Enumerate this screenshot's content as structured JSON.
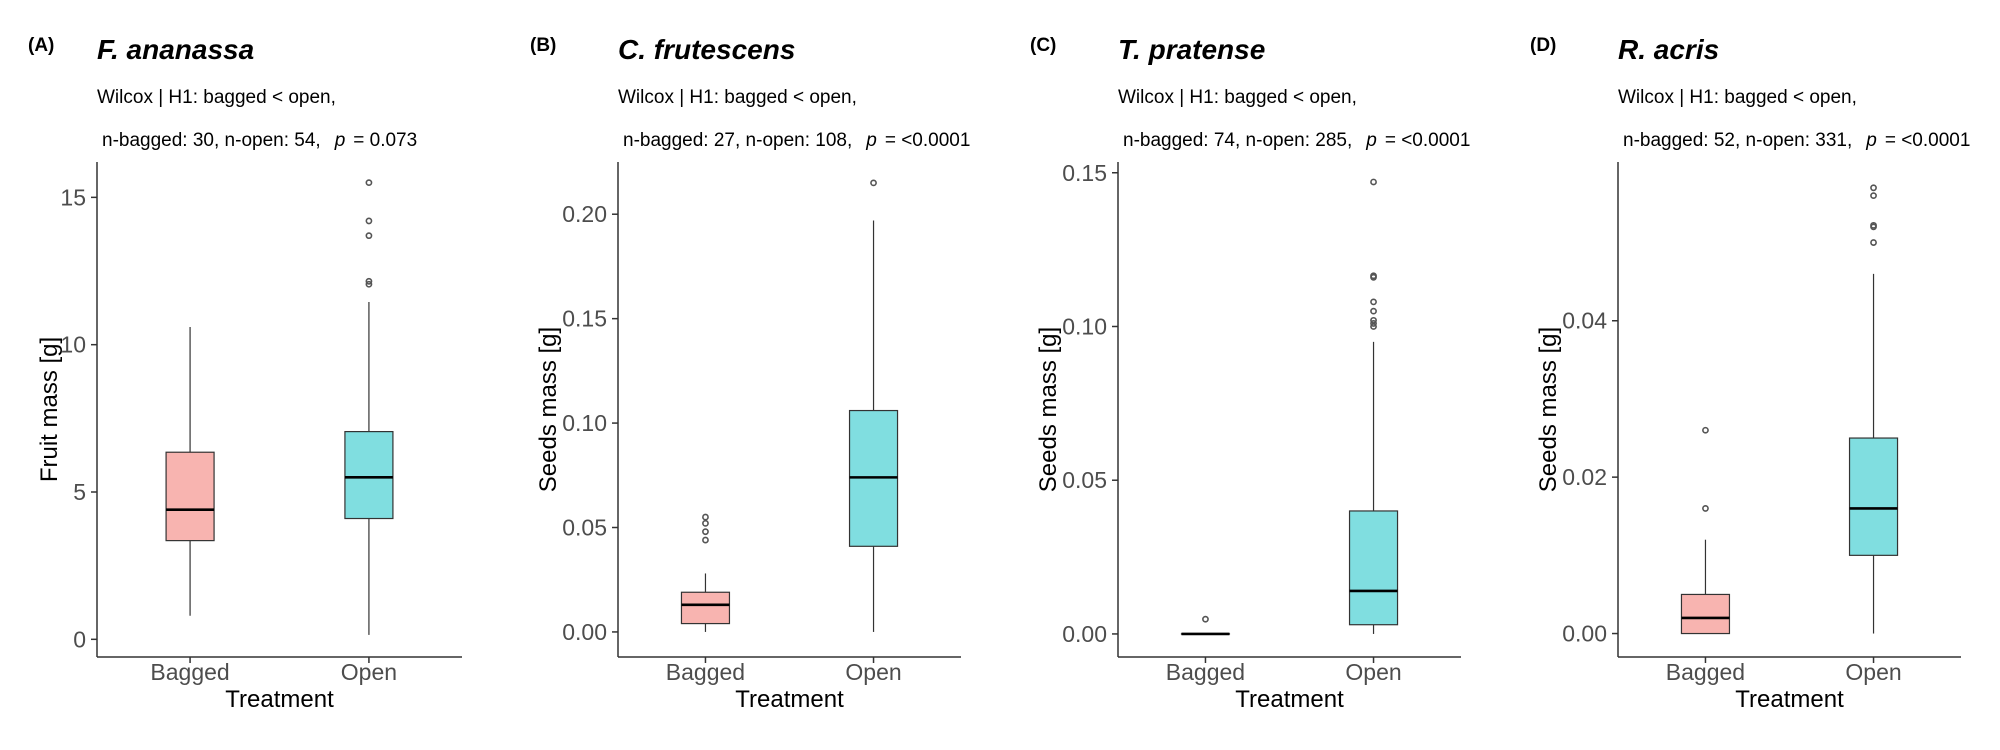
{
  "colors": {
    "bagged": "#F8B4B0",
    "open": "#80DEE0",
    "outline": "#333333",
    "outlier": "#555555"
  },
  "chart_data": [
    {
      "type": "box",
      "panel_label": "(A)",
      "title": "F. ananassa",
      "subtitle_line1": "Wilcox | H1: bagged < open,",
      "subtitle_line2_prefix": "n-bagged: 30, n-open: 54,",
      "p_label": "p",
      "p_value_text": "= 0.073",
      "xlabel": "Treatment",
      "ylabel": "Fruit mass [g]",
      "ylim": [
        -0.6,
        16.2
      ],
      "yticks": [
        0,
        5,
        10,
        15
      ],
      "ytick_labels": [
        "0",
        "5",
        "10",
        "15"
      ],
      "categories": [
        "Bagged",
        "Open"
      ],
      "boxes": [
        {
          "name": "Bagged",
          "min": 0.8,
          "q1": 3.35,
          "median": 4.4,
          "q3": 6.35,
          "max": 10.6,
          "outliers": []
        },
        {
          "name": "Open",
          "min": 0.15,
          "q1": 4.1,
          "median": 5.5,
          "q3": 7.05,
          "max": 11.45,
          "outliers": [
            12.05,
            12.15,
            13.7,
            14.2,
            15.5
          ]
        }
      ]
    },
    {
      "type": "box",
      "panel_label": "(B)",
      "title": "C. frutescens",
      "subtitle_line1": "Wilcox | H1: bagged < open,",
      "subtitle_line2_prefix": "n-bagged: 27, n-open: 108,",
      "p_label": "p",
      "p_value_text": "= <0.0001",
      "xlabel": "Treatment",
      "ylabel": "Seeds mass [g]",
      "ylim": [
        -0.012,
        0.225
      ],
      "yticks": [
        0,
        0.05,
        0.1,
        0.15,
        0.2
      ],
      "ytick_labels": [
        "0.00",
        "0.05",
        "0.10",
        "0.15",
        "0.20"
      ],
      "categories": [
        "Bagged",
        "Open"
      ],
      "boxes": [
        {
          "name": "Bagged",
          "min": 0.0,
          "q1": 0.004,
          "median": 0.013,
          "q3": 0.019,
          "max": 0.028,
          "outliers": [
            0.044,
            0.048,
            0.052,
            0.055
          ]
        },
        {
          "name": "Open",
          "min": 0.0,
          "q1": 0.041,
          "median": 0.074,
          "q3": 0.106,
          "max": 0.197,
          "outliers": [
            0.215
          ]
        }
      ]
    },
    {
      "type": "box",
      "panel_label": "(C)",
      "title": "T. pratense",
      "subtitle_line1": "Wilcox | H1: bagged < open,",
      "subtitle_line2_prefix": "n-bagged: 74, n-open: 285,",
      "p_label": "p",
      "p_value_text": "= <0.0001",
      "xlabel": "Treatment",
      "ylabel": "Seeds mass [g]",
      "ylim": [
        -0.0075,
        0.1535
      ],
      "yticks": [
        0,
        0.05,
        0.1,
        0.15
      ],
      "ytick_labels": [
        "0.00",
        "0.05",
        "0.10",
        "0.15"
      ],
      "categories": [
        "Bagged",
        "Open"
      ],
      "boxes": [
        {
          "name": "Bagged",
          "min": 0.0,
          "q1": 0.0,
          "median": 0.0,
          "q3": 0.0,
          "max": 0.0,
          "outliers": [
            0.0048
          ]
        },
        {
          "name": "Open",
          "min": 0.0,
          "q1": 0.003,
          "median": 0.014,
          "q3": 0.04,
          "max": 0.095,
          "outliers": [
            0.1,
            0.101,
            0.102,
            0.105,
            0.108,
            0.116,
            0.1165,
            0.147
          ]
        }
      ]
    },
    {
      "type": "box",
      "panel_label": "(D)",
      "title": "R. acris",
      "subtitle_line1": "Wilcox | H1: bagged < open,",
      "subtitle_line2_prefix": "n-bagged: 52, n-open: 331,",
      "p_label": "p",
      "p_value_text": "= <0.0001",
      "xlabel": "Treatment",
      "ylabel": "Seeds mass [g]",
      "ylim": [
        -0.003,
        0.0603
      ],
      "yticks": [
        0,
        0.02,
        0.04
      ],
      "ytick_labels": [
        "0.00",
        "0.02",
        "0.04"
      ],
      "categories": [
        "Bagged",
        "Open"
      ],
      "boxes": [
        {
          "name": "Bagged",
          "min": 0.0,
          "q1": 0.0,
          "median": 0.002,
          "q3": 0.005,
          "max": 0.012,
          "outliers": [
            0.016,
            0.026
          ]
        },
        {
          "name": "Open",
          "min": 0.0,
          "q1": 0.01,
          "median": 0.016,
          "q3": 0.025,
          "max": 0.046,
          "outliers": [
            0.05,
            0.052,
            0.0522,
            0.056,
            0.057
          ]
        }
      ]
    }
  ]
}
